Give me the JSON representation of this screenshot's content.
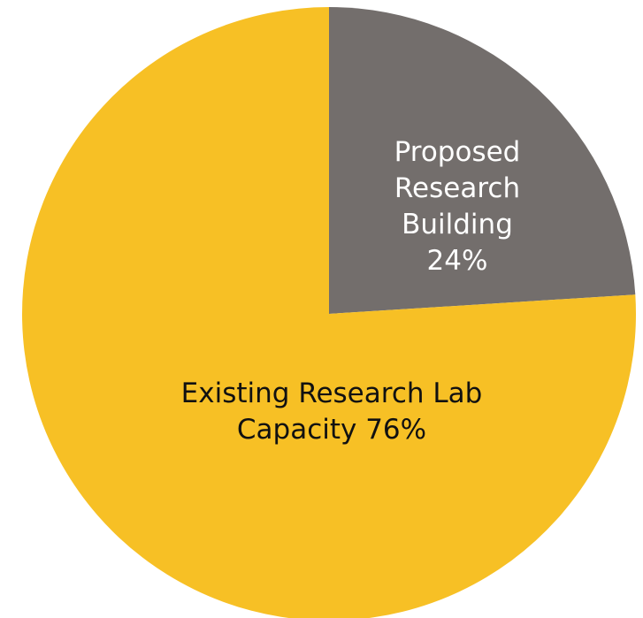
{
  "chart_data": {
    "type": "pie",
    "title": "",
    "slices": [
      {
        "name": "Proposed Research Building",
        "value": 24,
        "label_lines": [
          "Proposed",
          "Research",
          "Building",
          "24%"
        ],
        "color": "#736E6C",
        "text_color": "#ffffff"
      },
      {
        "name": "Existing Research Lab Capacity",
        "value": 76,
        "label_lines": [
          "Existing Research Lab",
          "Capacity 76%"
        ],
        "color": "#F7C025",
        "text_color": "#111111"
      }
    ],
    "start_angle_deg": 0,
    "direction": "clockwise",
    "legend": "none"
  }
}
